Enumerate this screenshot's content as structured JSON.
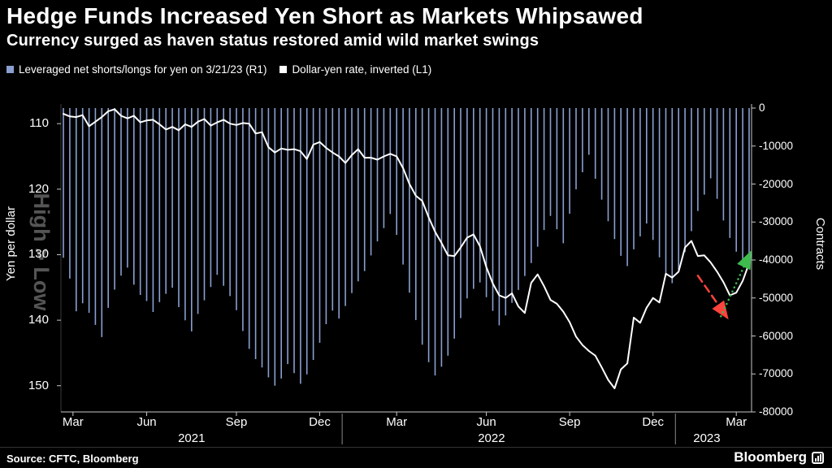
{
  "header": {
    "title": "Hedge Funds Increased Yen Short as Markets Whipsawed",
    "subtitle": "Currency surged as haven status restored amid wild market swings"
  },
  "legend": [
    {
      "label": "Leveraged net shorts/longs for yen on 3/21/23 (R1)",
      "color": "#8a9fd0",
      "marker": "square"
    },
    {
      "label": "Dollar-yen rate, inverted (L1)",
      "color": "#ffffff",
      "marker": "square"
    }
  ],
  "footer": {
    "source": "Source: CFTC, Bloomberg",
    "brand": "Bloomberg"
  },
  "chart_data": {
    "type": "dual-axis bar+line",
    "title": "Hedge Funds Increased Yen Short as Markets Whipsawed",
    "subtitle": "Currency surged as haven status restored amid wild market swings",
    "legend_position": "top-left",
    "grid": false,
    "x_axis": {
      "unit": "weekly, Mar 2021 - Mar 2023",
      "months": [
        {
          "label": "Mar",
          "week": 1.5
        },
        {
          "label": "Jun",
          "week": 13
        },
        {
          "label": "Sep",
          "week": 27
        },
        {
          "label": "Dec",
          "week": 40
        },
        {
          "label": "Mar",
          "week": 52
        },
        {
          "label": "Jun",
          "week": 66
        },
        {
          "label": "Sep",
          "week": 79
        },
        {
          "label": "Dec",
          "week": 92
        },
        {
          "label": "Mar",
          "week": 105
        }
      ],
      "years": [
        {
          "label": "2021",
          "week": 20
        },
        {
          "label": "2022",
          "week": 66.8
        },
        {
          "label": "2023",
          "week": 100.4
        }
      ],
      "year_divider_weeks": [
        43.5,
        95.5
      ]
    },
    "left_axis": {
      "label": "Yen per dollar",
      "ticks": [
        110,
        120,
        130,
        140,
        150
      ],
      "range": [
        107.0,
        154.0
      ],
      "inverted": true,
      "direction_note": "High > Low"
    },
    "right_axis": {
      "label": "Contracts",
      "ticks": [
        0,
        -10000,
        -20000,
        -30000,
        -40000,
        -50000,
        -60000,
        -70000,
        -80000
      ],
      "range": [
        0,
        -80000
      ]
    },
    "series": [
      {
        "name": "Leveraged net shorts/longs for yen on 3/21/23 (R1)",
        "type": "bar",
        "axis": "right",
        "color": "#8a9fd0",
        "values": [
          -39400,
          -44900,
          -53500,
          -51400,
          -53900,
          -57100,
          -60300,
          -52600,
          -47800,
          -44100,
          -42000,
          -46500,
          -49200,
          -50800,
          -53700,
          -51100,
          -48900,
          -47300,
          -52400,
          -55900,
          -58800,
          -54200,
          -50600,
          -47100,
          -43900,
          -46800,
          -49500,
          -53200,
          -58700,
          -63400,
          -66100,
          -68300,
          -70900,
          -73100,
          -71200,
          -67400,
          -69800,
          -72600,
          -70100,
          -66300,
          -61800,
          -56900,
          -53300,
          -55400,
          -52100,
          -48700,
          -45600,
          -42900,
          -38800,
          -35100,
          -31600,
          -27900,
          -33400,
          -41200,
          -48600,
          -55800,
          -62300,
          -66900,
          -70400,
          -68100,
          -65200,
          -60700,
          -55300,
          -50100,
          -47600,
          -45900,
          -49800,
          -53400,
          -57200,
          -54600,
          -51300,
          -47900,
          -44200,
          -40800,
          -36500,
          -32100,
          -28400,
          -31900,
          -35600,
          -27800,
          -21400,
          -16900,
          -12300,
          -18600,
          -24100,
          -29800,
          -34500,
          -38900,
          -41600,
          -37200,
          -33800,
          -30400,
          -34700,
          -39300,
          -43800,
          -46100,
          -42600,
          -37900,
          -32400,
          -27100,
          -22800,
          -18500,
          -23900,
          -29600,
          -34200,
          -37800,
          -39900,
          -41100
        ]
      },
      {
        "name": "Dollar-yen rate, inverted (L1)",
        "type": "line",
        "axis": "left",
        "color": "#ffffff",
        "values": [
          108.5,
          108.9,
          109.0,
          108.7,
          110.4,
          109.7,
          109.0,
          108.1,
          107.8,
          108.8,
          109.2,
          108.8,
          109.8,
          109.5,
          109.4,
          110.1,
          110.9,
          110.5,
          111.0,
          110.1,
          110.5,
          109.7,
          109.3,
          110.3,
          109.8,
          109.4,
          110.0,
          110.2,
          109.9,
          110.0,
          111.5,
          111.3,
          113.6,
          114.4,
          113.8,
          114.0,
          113.9,
          114.2,
          115.4,
          113.2,
          112.8,
          113.7,
          114.4,
          115.0,
          116.0,
          114.8,
          113.9,
          115.2,
          115.2,
          115.5,
          115.0,
          114.6,
          115.0,
          116.8,
          119.2,
          121.0,
          121.8,
          124.3,
          126.5,
          128.2,
          130.1,
          130.2,
          128.9,
          127.4,
          126.9,
          128.7,
          131.9,
          134.4,
          136.2,
          136.6,
          135.9,
          137.9,
          138.9,
          134.3,
          133.0,
          134.8,
          136.9,
          137.5,
          138.7,
          140.3,
          142.5,
          143.8,
          144.7,
          145.4,
          147.2,
          149.1,
          150.4,
          147.5,
          146.6,
          139.6,
          140.4,
          138.1,
          136.6,
          137.3,
          132.9,
          133.5,
          132.6,
          128.9,
          127.9,
          130.2,
          130.1,
          131.2,
          132.6,
          134.2,
          136.2,
          135.8,
          134.0,
          131.3
        ]
      }
    ],
    "annotations": [
      {
        "name": "yen-weakening-leg",
        "style": "dashed",
        "color": "#ff433d",
        "points": [
          [
            99,
            133.2
          ],
          [
            103.3,
            139.2
          ]
        ]
      },
      {
        "name": "yen-surge-leg",
        "style": "dotted",
        "color": "#3ebc4e",
        "points": [
          [
            102.6,
            139.4
          ],
          [
            107,
            130.1
          ]
        ]
      }
    ]
  }
}
